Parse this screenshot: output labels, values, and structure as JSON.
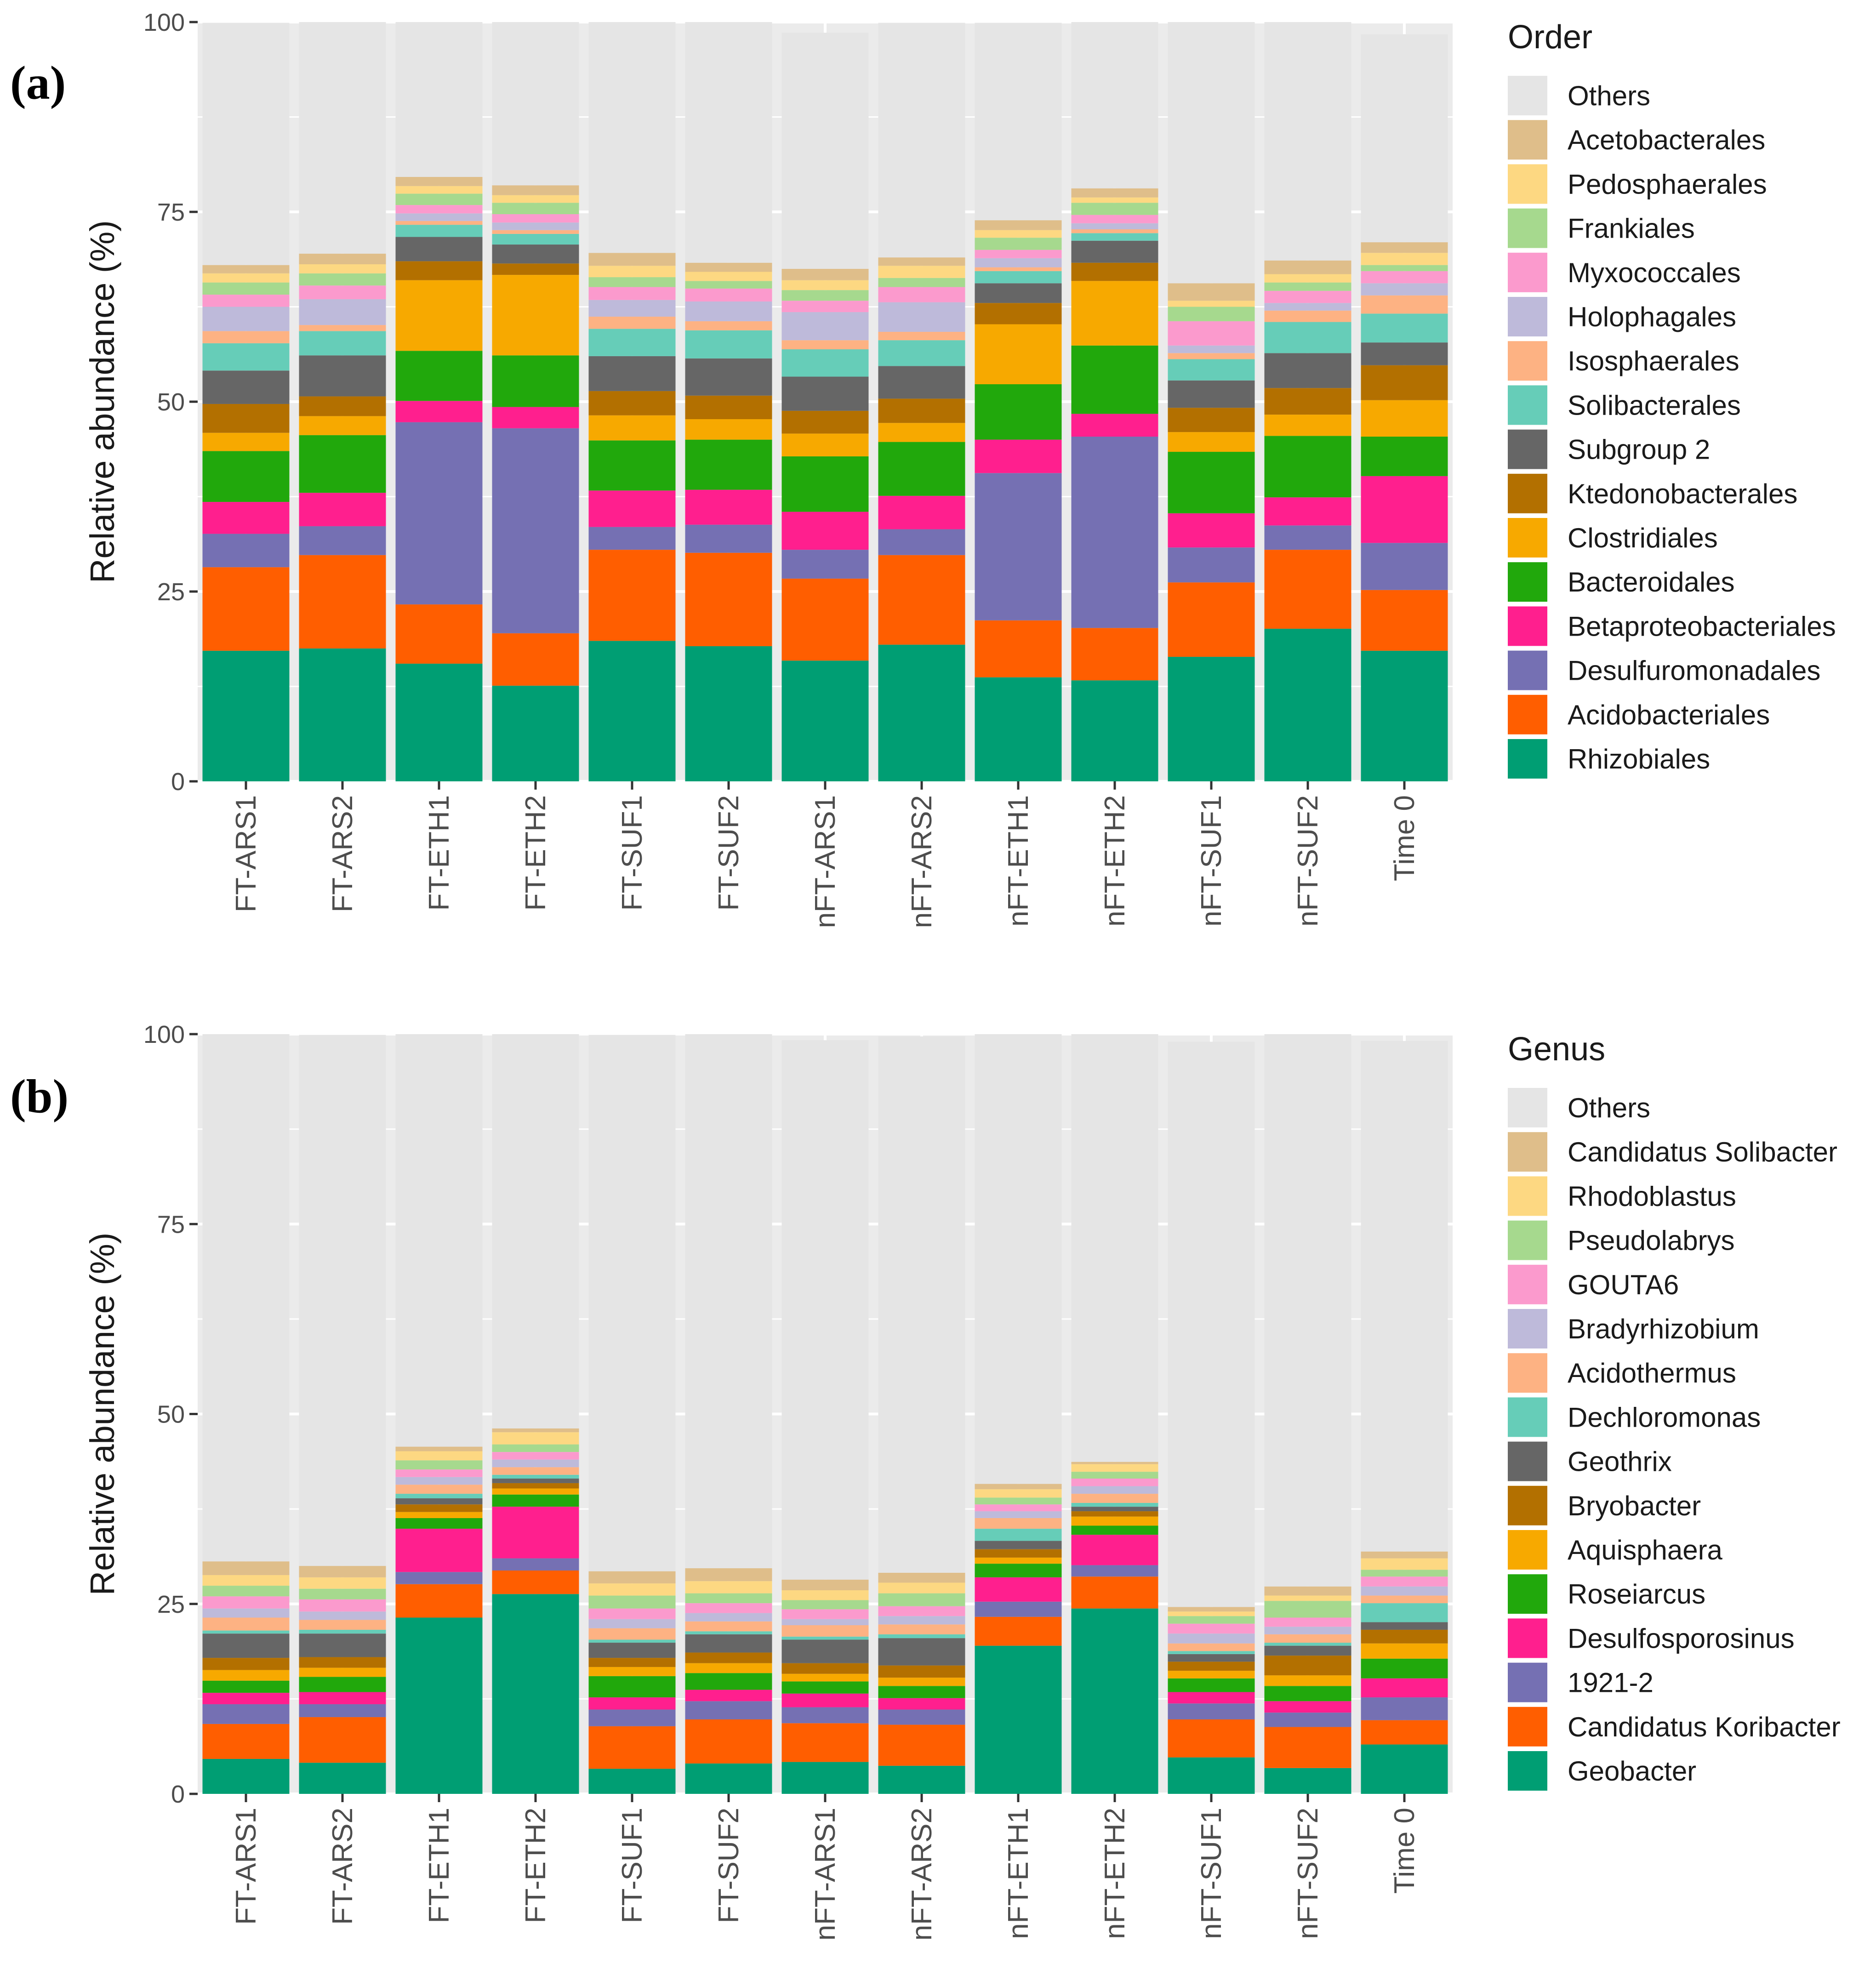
{
  "chart_data": [
    {
      "type": "bar",
      "stacked": true,
      "panel_label": "(a)",
      "ylabel": "Relative abundance (%)",
      "xlabel": "",
      "ylim": [
        0,
        100
      ],
      "yticks": [
        "0",
        "25",
        "50",
        "75",
        "100"
      ],
      "grid": true,
      "legend_position": "right",
      "legend_title": "Order",
      "categories": [
        "FT-ARS1",
        "FT-ARS2",
        "FT-ETH1",
        "FT-ETH2",
        "FT-SUF1",
        "FT-SUF2",
        "nFT-ARS1",
        "nFT-ARS2",
        "nFT-ETH1",
        "nFT-ETH2",
        "nFT-SUF1",
        "nFT-SUF2",
        "Time 0"
      ],
      "series": [
        {
          "name": "Rhizobiales",
          "color": "#009E73",
          "values": [
            17.2,
            17.5,
            15.5,
            12.6,
            18.5,
            17.8,
            15.9,
            18.0,
            13.7,
            13.3,
            16.4,
            20.1,
            17.2
          ]
        },
        {
          "name": "Acidobacteriales",
          "color": "#FF5E00",
          "values": [
            11.0,
            12.3,
            7.8,
            6.9,
            12.0,
            12.3,
            10.8,
            11.8,
            7.5,
            6.9,
            9.8,
            10.4,
            8.0
          ]
        },
        {
          "name": "Desulfuromonadales",
          "color": "#7570B3",
          "values": [
            4.4,
            3.8,
            24.0,
            27.0,
            3.0,
            3.7,
            3.8,
            3.4,
            19.4,
            25.2,
            4.6,
            3.2,
            6.2
          ]
        },
        {
          "name": "Betaproteobacteriales",
          "color": "#FF1F8E",
          "values": [
            4.2,
            4.4,
            2.8,
            2.8,
            4.8,
            4.6,
            5.0,
            4.4,
            4.4,
            3.0,
            4.5,
            3.7,
            8.8
          ]
        },
        {
          "name": "Bacteroidales",
          "color": "#21A80C",
          "values": [
            6.7,
            7.6,
            6.6,
            6.8,
            6.6,
            6.6,
            7.3,
            7.1,
            7.3,
            9.0,
            8.1,
            8.1,
            5.2
          ]
        },
        {
          "name": "Clostridiales",
          "color": "#F7A900",
          "values": [
            2.4,
            2.5,
            9.3,
            10.6,
            3.3,
            2.7,
            3.0,
            2.5,
            7.9,
            8.5,
            2.6,
            2.8,
            4.8
          ]
        },
        {
          "name": "Ktedonobacterales",
          "color": "#B37000",
          "values": [
            3.8,
            2.6,
            2.5,
            1.5,
            3.2,
            3.1,
            3.0,
            3.2,
            2.8,
            2.4,
            3.2,
            3.5,
            4.6
          ]
        },
        {
          "name": "Subgroup 2",
          "color": "#666666",
          "values": [
            4.4,
            5.4,
            3.2,
            2.5,
            4.6,
            4.9,
            4.5,
            4.3,
            2.6,
            2.9,
            3.6,
            4.6,
            3.0
          ]
        },
        {
          "name": "Solibacterales",
          "color": "#66CDB8",
          "values": [
            3.6,
            3.2,
            1.6,
            1.4,
            3.6,
            3.7,
            3.6,
            3.4,
            1.6,
            1.0,
            2.8,
            4.1,
            3.8
          ]
        },
        {
          "name": "Isosphaerales",
          "color": "#FDB283",
          "values": [
            1.6,
            0.8,
            0.5,
            0.5,
            1.6,
            1.2,
            1.2,
            1.1,
            0.5,
            0.5,
            0.8,
            1.5,
            2.4
          ]
        },
        {
          "name": "Holophagales",
          "color": "#BEBADA",
          "values": [
            3.2,
            3.4,
            1.0,
            1.0,
            2.2,
            2.6,
            3.7,
            3.9,
            1.2,
            0.8,
            1.0,
            1.0,
            1.6
          ]
        },
        {
          "name": "Myxococcales",
          "color": "#FB9ACD",
          "values": [
            1.6,
            1.8,
            1.1,
            1.1,
            1.7,
            1.7,
            1.5,
            2.0,
            1.1,
            1.1,
            3.2,
            1.6,
            1.6
          ]
        },
        {
          "name": "Frankiales",
          "color": "#A6D98E",
          "values": [
            1.6,
            1.6,
            1.5,
            1.5,
            1.3,
            1.0,
            1.4,
            1.2,
            1.6,
            1.6,
            1.9,
            1.1,
            0.8
          ]
        },
        {
          "name": "Pedosphaerales",
          "color": "#FDD882",
          "values": [
            1.2,
            1.2,
            1.0,
            1.0,
            1.5,
            1.2,
            1.3,
            1.6,
            1.0,
            0.7,
            0.8,
            1.1,
            1.6
          ]
        },
        {
          "name": "Acetobacterales",
          "color": "#DFBE8A",
          "values": [
            1.1,
            1.4,
            1.2,
            1.3,
            1.7,
            1.2,
            1.5,
            1.1,
            1.3,
            1.2,
            2.3,
            1.8,
            1.4
          ]
        },
        {
          "name": "Others",
          "color": "#E5E5E5",
          "values": [
            31.9,
            30.5,
            21.4,
            22.5,
            31.1,
            31.7,
            31.1,
            30.9,
            26.0,
            22.2,
            35.5,
            31.5,
            27.4
          ]
        }
      ]
    },
    {
      "type": "bar",
      "stacked": true,
      "panel_label": "(b)",
      "ylabel": "Relative abundance (%)",
      "xlabel": "",
      "ylim": [
        0,
        100
      ],
      "yticks": [
        "0",
        "25",
        "50",
        "75",
        "100"
      ],
      "grid": true,
      "legend_position": "right",
      "legend_title": "Genus",
      "categories": [
        "FT-ARS1",
        "FT-ARS2",
        "FT-ETH1",
        "FT-ETH2",
        "FT-SUF1",
        "FT-SUF2",
        "nFT-ARS1",
        "nFT-ARS2",
        "nFT-ETH1",
        "nFT-ETH2",
        "nFT-SUF1",
        "nFT-SUF2",
        "Time 0"
      ],
      "series": [
        {
          "name": "Geobacter",
          "color": "#009E73",
          "values": [
            4.6,
            4.1,
            23.2,
            26.3,
            3.3,
            4.0,
            4.2,
            3.7,
            19.5,
            24.4,
            4.8,
            3.4,
            6.5
          ]
        },
        {
          "name": "Candidatus Koribacter",
          "color": "#FF5E00",
          "values": [
            4.6,
            6.0,
            4.4,
            3.1,
            5.6,
            5.8,
            5.1,
            5.4,
            3.8,
            4.2,
            5.0,
            5.4,
            3.2
          ]
        },
        {
          "name": "1921-2",
          "color": "#7570B3",
          "values": [
            2.6,
            1.7,
            1.6,
            1.6,
            2.2,
            2.4,
            2.1,
            2.0,
            2.0,
            1.5,
            2.1,
            1.9,
            3.0
          ]
        },
        {
          "name": "Desulfosporosinus",
          "color": "#FF1F8E",
          "values": [
            1.5,
            1.6,
            5.7,
            6.8,
            1.6,
            1.5,
            1.8,
            1.5,
            3.2,
            4.0,
            1.5,
            1.5,
            2.5
          ]
        },
        {
          "name": "Roseiarcus",
          "color": "#21A80C",
          "values": [
            1.6,
            2.0,
            1.4,
            1.6,
            2.8,
            2.2,
            1.6,
            1.6,
            1.8,
            1.2,
            1.8,
            2.0,
            2.6
          ]
        },
        {
          "name": "Aquisphaera",
          "color": "#F7A900",
          "values": [
            1.4,
            1.2,
            0.8,
            0.8,
            1.2,
            1.3,
            1.0,
            1.1,
            0.8,
            1.2,
            1.0,
            1.4,
            2.0
          ]
        },
        {
          "name": "Bryobacter",
          "color": "#B37000",
          "values": [
            1.6,
            1.4,
            1.0,
            0.7,
            1.2,
            1.4,
            1.4,
            1.6,
            1.1,
            0.7,
            1.2,
            2.6,
            1.8
          ]
        },
        {
          "name": "Geothrix",
          "color": "#666666",
          "values": [
            3.2,
            3.1,
            0.8,
            0.6,
            2.0,
            2.4,
            3.1,
            3.6,
            1.1,
            0.6,
            1.0,
            1.3,
            1.0
          ]
        },
        {
          "name": "Dechloromonas",
          "color": "#66CDB8",
          "values": [
            0.4,
            0.5,
            0.6,
            0.5,
            0.4,
            0.4,
            0.4,
            0.5,
            1.6,
            0.5,
            0.4,
            0.4,
            2.5
          ]
        },
        {
          "name": "Acidothermus",
          "color": "#FDB283",
          "values": [
            1.7,
            1.3,
            1.2,
            1.0,
            1.5,
            1.3,
            1.5,
            1.3,
            1.4,
            1.2,
            1.0,
            1.1,
            1.0
          ]
        },
        {
          "name": "Bradyrhizobium",
          "color": "#BEBADA",
          "values": [
            1.2,
            1.1,
            1.0,
            1.0,
            1.2,
            1.1,
            0.8,
            1.1,
            0.9,
            1.0,
            1.3,
            1.0,
            1.2
          ]
        },
        {
          "name": "GOUTA6",
          "color": "#FB9ACD",
          "values": [
            1.6,
            1.6,
            1.0,
            1.0,
            1.4,
            1.3,
            1.3,
            1.3,
            0.9,
            1.0,
            1.3,
            1.2,
            1.3
          ]
        },
        {
          "name": "Pseudolabrys",
          "color": "#A6D98E",
          "values": [
            1.4,
            1.4,
            1.2,
            1.0,
            1.7,
            1.3,
            1.2,
            1.7,
            0.9,
            0.9,
            1.0,
            2.2,
            0.9
          ]
        },
        {
          "name": "Rhodoblastus",
          "color": "#FDD882",
          "values": [
            1.4,
            1.5,
            1.2,
            1.6,
            1.6,
            1.6,
            1.3,
            1.4,
            1.1,
            1.0,
            0.6,
            0.7,
            1.5
          ]
        },
        {
          "name": "Candidatus Solibacter",
          "color": "#DFBE8A",
          "values": [
            1.8,
            1.5,
            0.6,
            0.5,
            1.6,
            1.7,
            1.4,
            1.3,
            0.7,
            0.3,
            0.6,
            1.2,
            0.9
          ]
        },
        {
          "name": "Others",
          "color": "#E5E5E5",
          "values": [
            69.4,
            69.9,
            54.4,
            52.0,
            70.6,
            70.3,
            71.0,
            70.6,
            59.2,
            56.3,
            74.4,
            72.8,
            67.2
          ]
        }
      ]
    }
  ]
}
